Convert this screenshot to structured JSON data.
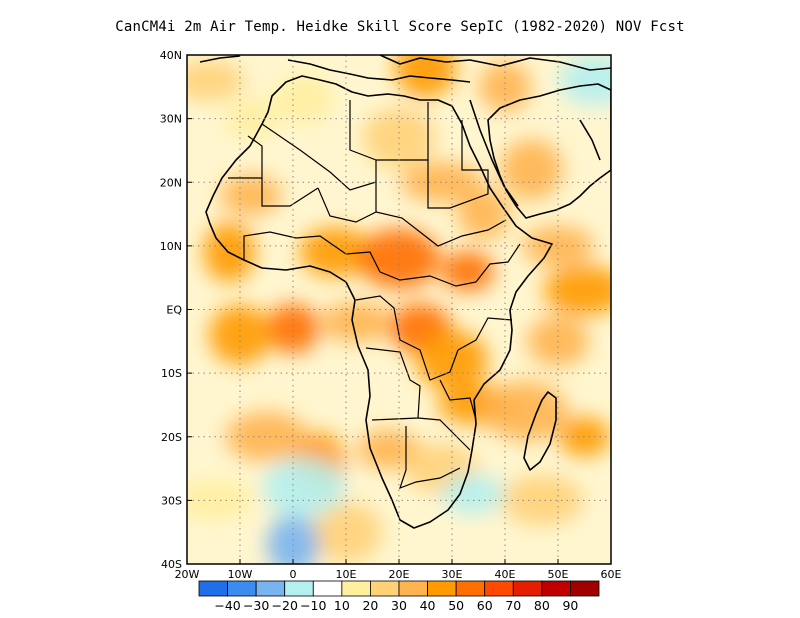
{
  "title": "CanCM4i  2m Air Temp. Heidke Skill Score SepIC (1982-2020) NOV Fcst",
  "map": {
    "lon_range": [
      -20,
      60
    ],
    "lat_range": [
      -40,
      40
    ],
    "lon_ticks": [
      {
        "value": -20,
        "label": "20W"
      },
      {
        "value": -10,
        "label": "10W"
      },
      {
        "value": 0,
        "label": "0"
      },
      {
        "value": 10,
        "label": "10E"
      },
      {
        "value": 20,
        "label": "20E"
      },
      {
        "value": 30,
        "label": "30E"
      },
      {
        "value": 40,
        "label": "40E"
      },
      {
        "value": 50,
        "label": "50E"
      },
      {
        "value": 60,
        "label": "60E"
      }
    ],
    "lat_ticks": [
      {
        "value": 40,
        "label": "40N"
      },
      {
        "value": 30,
        "label": "30N"
      },
      {
        "value": 20,
        "label": "20N"
      },
      {
        "value": 10,
        "label": "10N"
      },
      {
        "value": 0,
        "label": "EQ"
      },
      {
        "value": -10,
        "label": "10S"
      },
      {
        "value": -20,
        "label": "20S"
      },
      {
        "value": -30,
        "label": "30S"
      },
      {
        "value": -40,
        "label": "40S"
      }
    ],
    "grid": "dotted",
    "skill_patches": [
      {
        "lon": -8,
        "lat": 30,
        "value": 15
      },
      {
        "lon": 2,
        "lat": 33,
        "value": 18
      },
      {
        "lon": 20,
        "lat": 27,
        "value": 25
      },
      {
        "lon": 28,
        "lat": 20,
        "value": 30
      },
      {
        "lon": 36,
        "lat": 15,
        "value": 35
      },
      {
        "lon": 45,
        "lat": 22,
        "value": 30
      },
      {
        "lon": 50,
        "lat": 10,
        "value": 35
      },
      {
        "lon": 55,
        "lat": 3,
        "value": 40
      },
      {
        "lon": -12,
        "lat": 9,
        "value": 45
      },
      {
        "lon": -8,
        "lat": 18,
        "value": 35
      },
      {
        "lon": 8,
        "lat": 9,
        "value": 45
      },
      {
        "lon": 20,
        "lat": 8,
        "value": 50
      },
      {
        "lon": 33,
        "lat": 6,
        "value": 55
      },
      {
        "lon": 24,
        "lat": -3,
        "value": 50
      },
      {
        "lon": 30,
        "lat": -8,
        "value": 45
      },
      {
        "lon": 35,
        "lat": -15,
        "value": 40
      },
      {
        "lon": 0,
        "lat": -3,
        "value": 55
      },
      {
        "lon": -10,
        "lat": -4,
        "value": 40
      },
      {
        "lon": 12,
        "lat": -2,
        "value": 35
      },
      {
        "lon": -5,
        "lat": -20,
        "value": 30
      },
      {
        "lon": 5,
        "lat": -24,
        "value": 40
      },
      {
        "lon": 18,
        "lat": -22,
        "value": 30
      },
      {
        "lon": 28,
        "lat": -25,
        "value": 25
      },
      {
        "lon": 44,
        "lat": -16,
        "value": 35
      },
      {
        "lon": 55,
        "lat": -20,
        "value": 40
      },
      {
        "lon": 50,
        "lat": -5,
        "value": 35
      },
      {
        "lon": 10,
        "lat": -35,
        "value": 20
      },
      {
        "lon": -15,
        "lat": -30,
        "value": 18
      },
      {
        "lon": 40,
        "lat": 35,
        "value": 35
      },
      {
        "lon": 25,
        "lat": 38,
        "value": 40
      },
      {
        "lon": -16,
        "lat": 36,
        "value": 25
      },
      {
        "lon": 47,
        "lat": -30,
        "value": 20
      }
    ],
    "negative_patches": [
      {
        "lon": 0,
        "lat": -37,
        "value": -25
      },
      {
        "lon": 34,
        "lat": -29,
        "value": -15
      },
      {
        "lon": 57,
        "lat": 36,
        "value": -15
      },
      {
        "lon": 2,
        "lat": -28,
        "value": -12
      }
    ]
  },
  "colorbar": {
    "colors": [
      "#1f6fe8",
      "#3c8cf0",
      "#78b4f0",
      "#b4f0f0",
      "#ffffff",
      "#fff0a0",
      "#ffd278",
      "#ffb450",
      "#ff9a00",
      "#ff6e00",
      "#ff4a00",
      "#e61e00",
      "#c00000",
      "#a00000"
    ],
    "labels": [
      "-40",
      "-30",
      "-20",
      "-10",
      "10",
      "20",
      "30",
      "40",
      "50",
      "60",
      "70",
      "80",
      "90"
    ]
  }
}
